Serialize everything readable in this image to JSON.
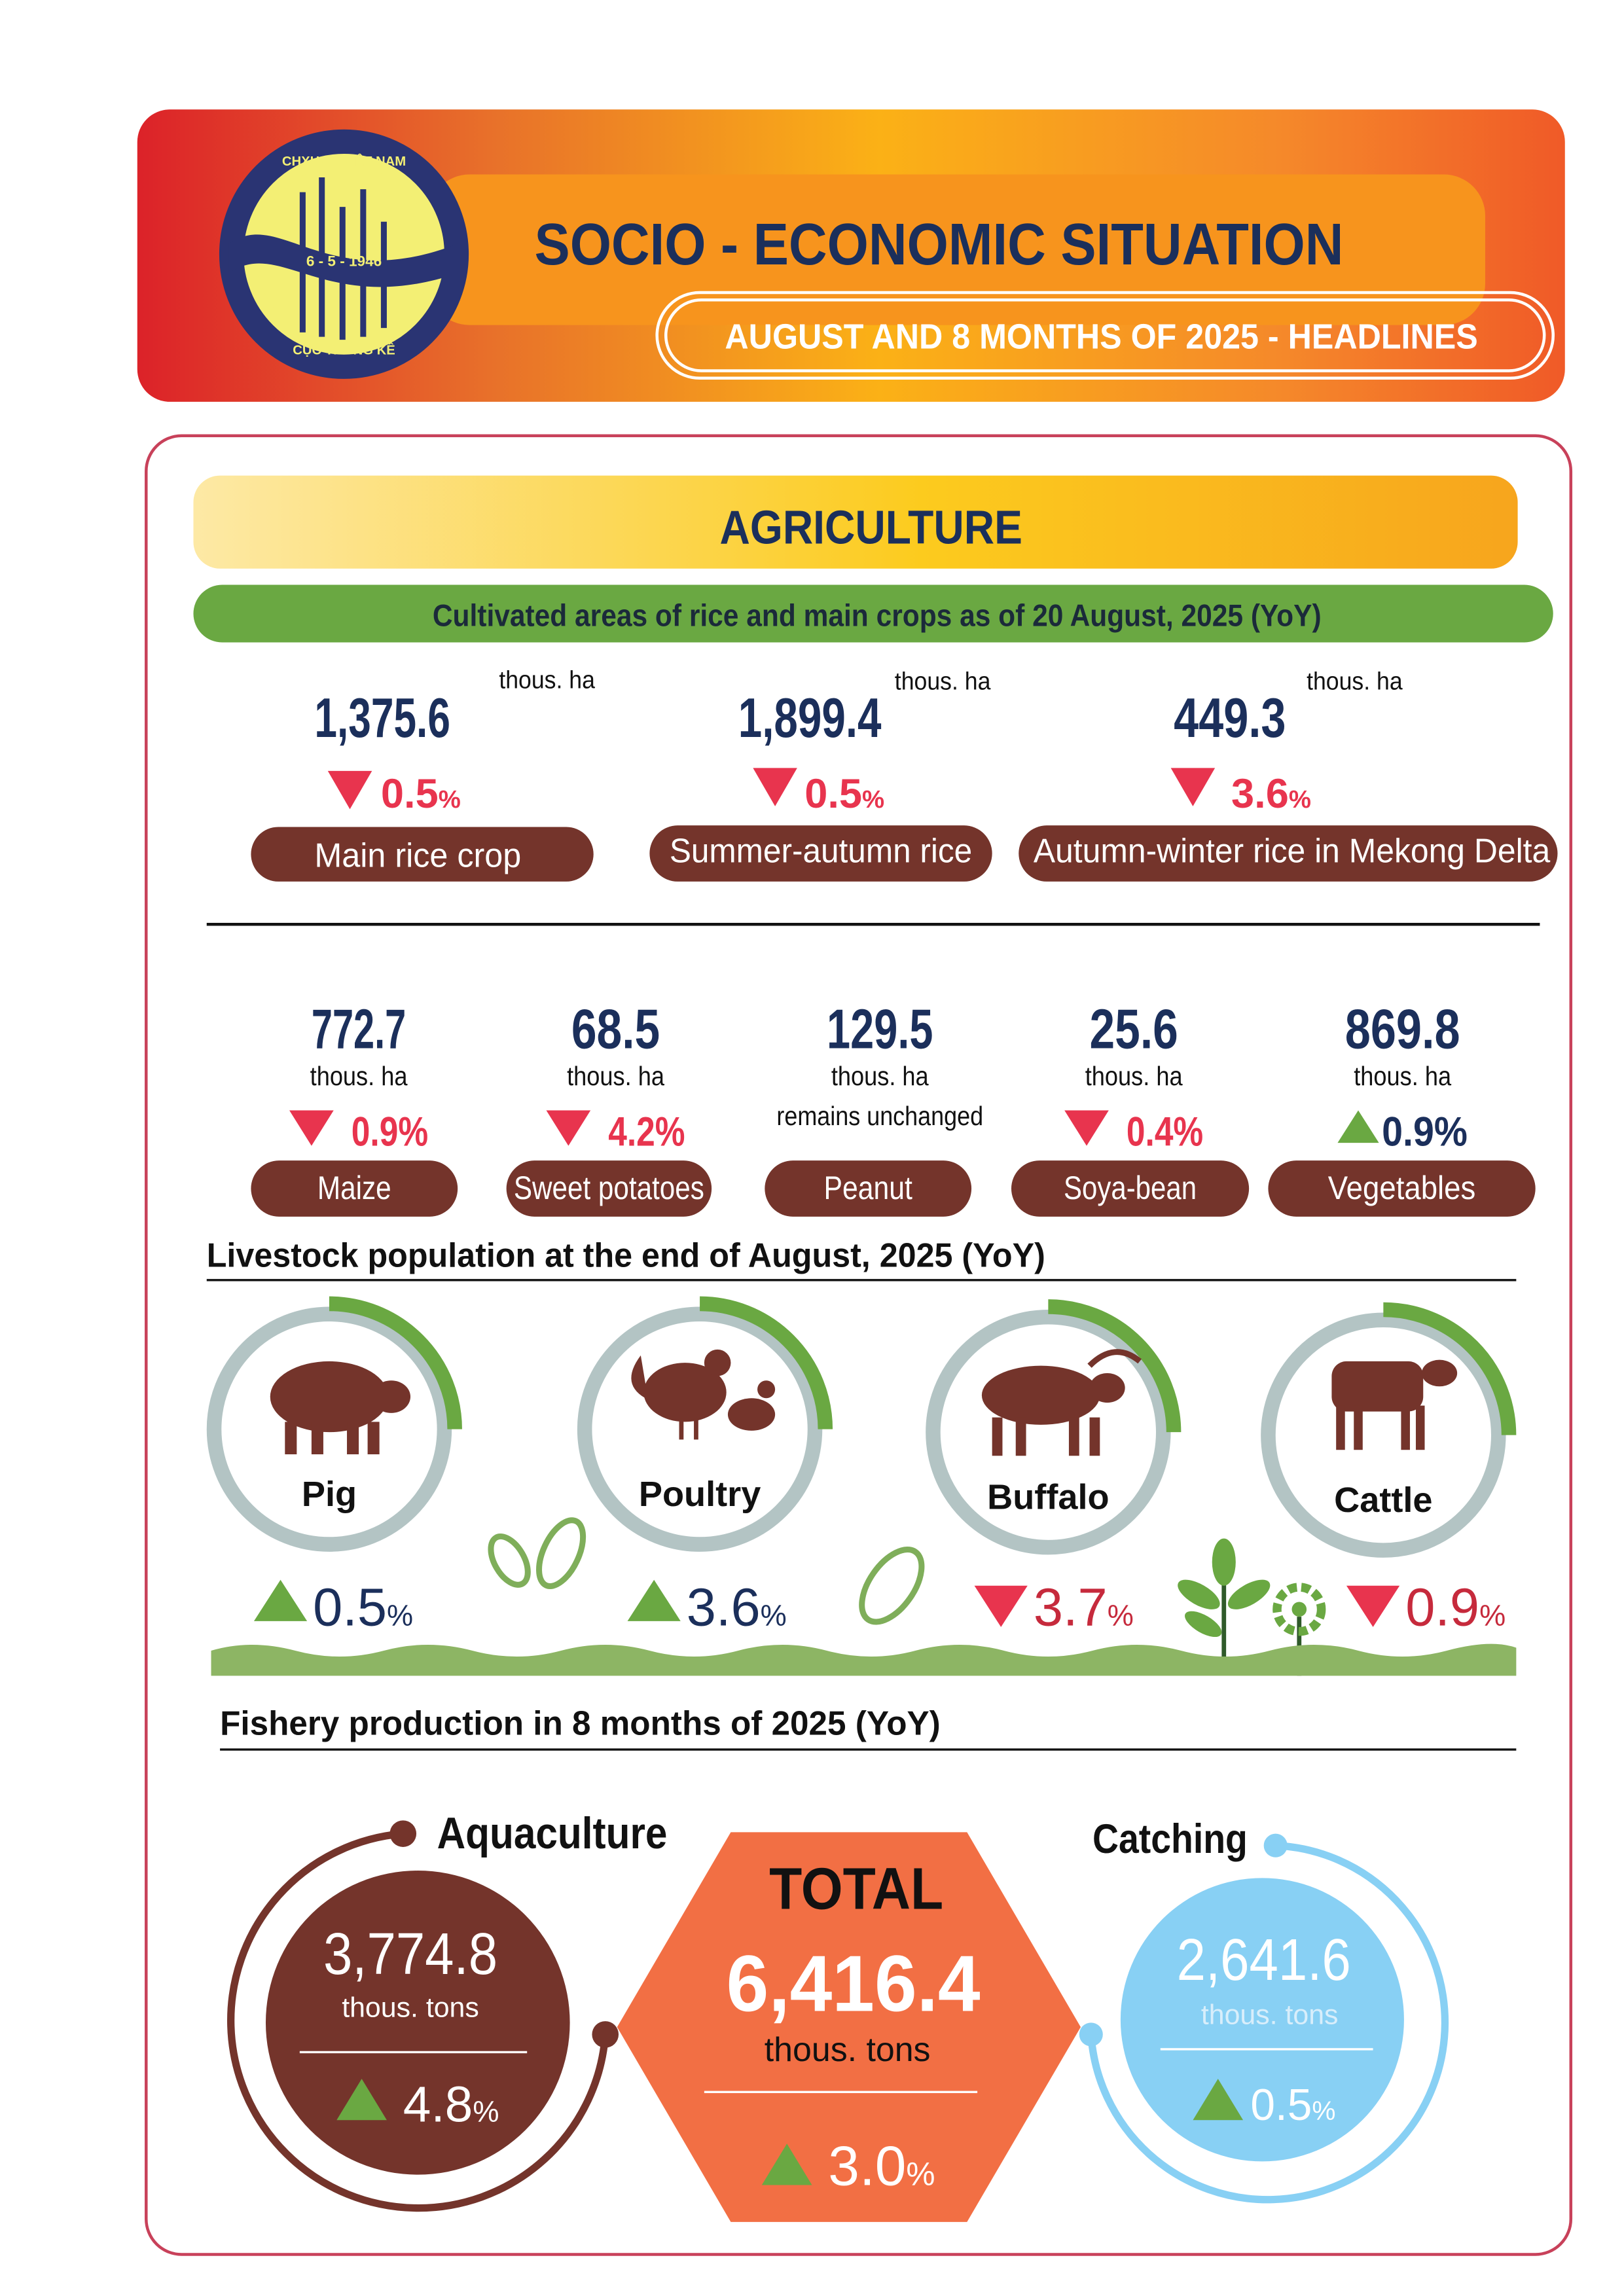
{
  "header": {
    "logo_text": [
      "CHXHCN VIỆT NAM",
      "6 - 5 - 1946",
      "CỤC THỐNG KÊ"
    ],
    "title": "SOCIO - ECONOMIC SITUATION",
    "subtitle": "AUGUST AND 8 MONTHS OF 2025 - HEADLINES"
  },
  "colors": {
    "navy": "#1b2f5b",
    "brown": "#74342b",
    "decrease": "#e8344e",
    "increase": "#6aa842",
    "total": "#f26f44",
    "catching": "#88d0f4",
    "ring": "#b3c4c4"
  },
  "agriculture": {
    "title": "AGRICULTURE",
    "crops_title": "Cultivated areas of rice and main crops as of 20 August, 2025 (YoY)",
    "rice": [
      {
        "value": "1,375.6",
        "unit": "thous. ha",
        "change": "0.5",
        "pct": "%",
        "direction": "down",
        "label": "Main rice crop"
      },
      {
        "value": "1,899.4",
        "unit": "thous. ha",
        "change": "0.5",
        "pct": "%",
        "direction": "down",
        "label": "Summer-autumn rice"
      },
      {
        "value": "449.3",
        "unit": "thous. ha",
        "change": "3.6",
        "pct": "%",
        "direction": "down",
        "label": "Autumn-winter rice in Mekong Delta"
      }
    ],
    "crops": [
      {
        "value": "772.7",
        "unit": "thous. ha",
        "change": "0.9%",
        "direction": "down",
        "label": "Maize"
      },
      {
        "value": "68.5",
        "unit": "thous. ha",
        "change": "4.2%",
        "direction": "down",
        "label": "Sweet potatoes"
      },
      {
        "value": "129.5",
        "unit": "thous. ha",
        "change": "remains unchanged",
        "direction": "none",
        "label": "Peanut"
      },
      {
        "value": "25.6",
        "unit": "thous. ha",
        "change": "0.4%",
        "direction": "down",
        "label": "Soya-bean"
      },
      {
        "value": "869.8",
        "unit": "thous. ha",
        "change": "0.9%",
        "direction": "up",
        "label": "Vegetables"
      }
    ]
  },
  "livestock": {
    "title": "Livestock population at the end of August, 2025 (YoY)",
    "items": [
      {
        "label": "Pig",
        "change": "0.5",
        "pct": "%",
        "direction": "up",
        "icon": "pig-icon"
      },
      {
        "label": "Poultry",
        "change": "3.6",
        "pct": "%",
        "direction": "up",
        "icon": "poultry-icon"
      },
      {
        "label": "Buffalo",
        "change": "3.7",
        "pct": "%",
        "direction": "down",
        "icon": "buffalo-icon"
      },
      {
        "label": "Cattle",
        "change": "0.9",
        "pct": "%",
        "direction": "down",
        "icon": "cattle-icon"
      }
    ]
  },
  "fishery": {
    "title": "Fishery production in 8 months of 2025 (YoY)",
    "aquaculture": {
      "label": "Aquaculture",
      "value": "3,774.8",
      "unit": "thous. tons",
      "change": "4.8",
      "pct": "%",
      "direction": "up"
    },
    "total": {
      "label": "TOTAL",
      "value": "6,416.4",
      "unit": "thous. tons",
      "change": "3.0",
      "pct": "%",
      "direction": "up"
    },
    "catching": {
      "label": "Catching",
      "value": "2,641.6",
      "unit": "thous. tons",
      "change": "0.5",
      "pct": "%",
      "direction": "up"
    }
  }
}
